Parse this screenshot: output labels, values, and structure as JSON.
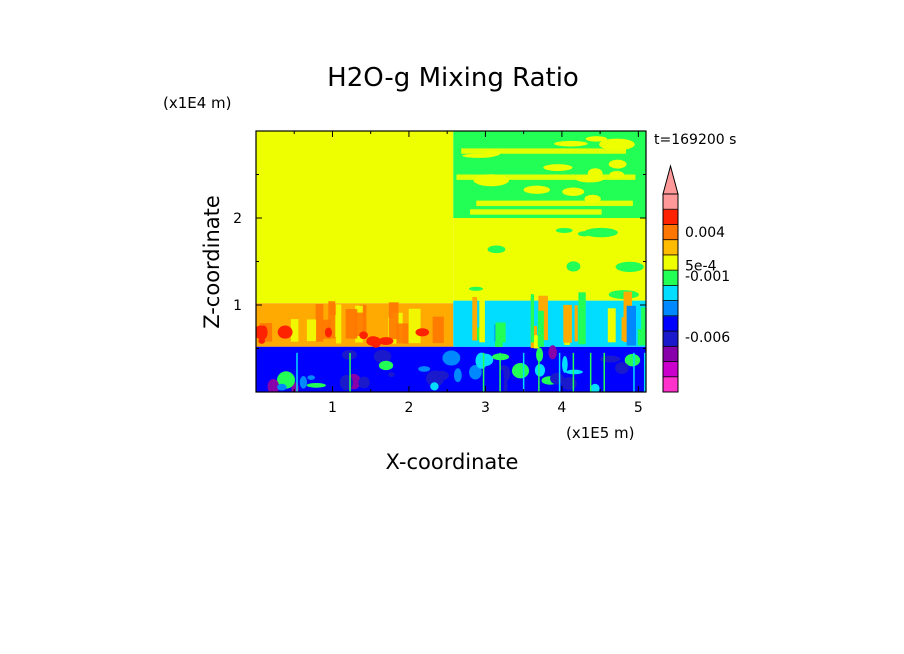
{
  "chart_data": {
    "type": "heatmap",
    "title": "H2O-g Mixing Ratio",
    "xlabel": "X-coordinate",
    "ylabel": "Z-coordinate",
    "x_unit": "(x1E5 m)",
    "y_unit": "(x1E4 m)",
    "time_label": "t=169200 s",
    "xlim": [
      0,
      5.1
    ],
    "ylim": [
      0,
      3.0
    ],
    "x_ticks": [
      1,
      2,
      3,
      4,
      5
    ],
    "y_ticks": [
      1,
      2
    ],
    "colorbar": {
      "tick_labels": [
        "0.004",
        "5e-4",
        "-0.001",
        "-0.006"
      ],
      "tick_values": [
        0.004,
        0.0005,
        -0.001,
        -0.006
      ],
      "extend": "max",
      "colors": [
        "#ff33cc",
        "#cc00cc",
        "#8800aa",
        "#1a1acc",
        "#0000ff",
        "#0088ff",
        "#00ddff",
        "#22ff55",
        "#eeff00",
        "#ffbb00",
        "#ff7700",
        "#ff2200",
        "#ff9999"
      ]
    },
    "regions": [
      {
        "x": [
          0,
          2.58
        ],
        "z": [
          1.02,
          3.0
        ],
        "level": "yellow",
        "value": 0.0
      },
      {
        "x": [
          0,
          2.58
        ],
        "z": [
          0.52,
          1.02
        ],
        "level": "orange",
        "value": 0.002
      },
      {
        "x": [
          0,
          5.1
        ],
        "z": [
          0,
          0.52
        ],
        "level": "blue",
        "value": -0.004
      },
      {
        "x": [
          2.58,
          5.1
        ],
        "z": [
          2.0,
          3.0
        ],
        "level": "green",
        "value": -0.0008
      },
      {
        "x": [
          2.58,
          5.1
        ],
        "z": [
          1.05,
          2.0
        ],
        "level": "yellow",
        "value": 0.0
      },
      {
        "x": [
          2.58,
          5.1
        ],
        "z": [
          0.52,
          1.05
        ],
        "level": "cyan",
        "value": -0.0015
      }
    ]
  },
  "colors": {
    "yellow": "#eeff00",
    "green": "#22ff55",
    "cyan": "#00ddff",
    "lightblue": "#0088ff",
    "blue": "#0000ff",
    "darkblue": "#1a1acc",
    "purple": "#8800aa",
    "magenta": "#ff33cc",
    "orange": "#ffaa00",
    "darkorange": "#ff7700",
    "red": "#ff2200",
    "pink": "#ff9999"
  }
}
